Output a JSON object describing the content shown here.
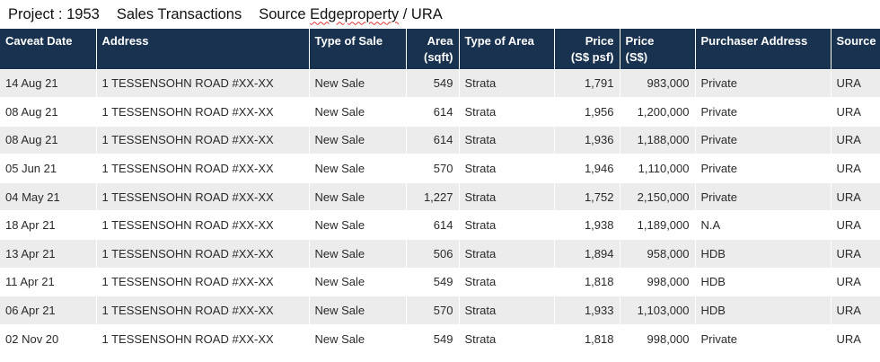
{
  "header": {
    "project": "Project : 1953",
    "sales": "Sales Transactions",
    "source_prefix": "Source ",
    "source_name": "Edgeproperty",
    "source_suffix": " / URA"
  },
  "columns": [
    {
      "key": "caveat_date",
      "label": "Caveat Date",
      "label2": "",
      "align": "left"
    },
    {
      "key": "address",
      "label": "Address",
      "label2": "",
      "align": "left"
    },
    {
      "key": "type_of_sale",
      "label": "Type of Sale",
      "label2": "",
      "align": "left"
    },
    {
      "key": "area",
      "label": "Area",
      "label2": "(sqft)",
      "align": "right"
    },
    {
      "key": "type_of_area",
      "label": "Type of Area",
      "label2": "",
      "align": "left"
    },
    {
      "key": "price_psf",
      "label": "Price",
      "label2": "(S$ psf)",
      "align": "right"
    },
    {
      "key": "price",
      "label": "Price",
      "label2": "(S$)",
      "align": "left"
    },
    {
      "key": "purchaser_address",
      "label": "Purchaser Address",
      "label2": "",
      "align": "left"
    },
    {
      "key": "source",
      "label": "Source",
      "label2": "",
      "align": "left"
    }
  ],
  "rows": [
    {
      "caveat_date": "14 Aug 21",
      "address": "1 TESSENSOHN ROAD #XX-XX",
      "type_of_sale": "New Sale",
      "area": "549",
      "type_of_area": "Strata",
      "price_psf": "1,791",
      "price": "983,000",
      "purchaser_address": "Private",
      "source": "URA"
    },
    {
      "caveat_date": "08 Aug 21",
      "address": "1 TESSENSOHN ROAD #XX-XX",
      "type_of_sale": "New Sale",
      "area": "614",
      "type_of_area": "Strata",
      "price_psf": "1,956",
      "price": "1,200,000",
      "purchaser_address": "Private",
      "source": "URA"
    },
    {
      "caveat_date": "08 Aug 21",
      "address": "1 TESSENSOHN ROAD #XX-XX",
      "type_of_sale": "New Sale",
      "area": "614",
      "type_of_area": "Strata",
      "price_psf": "1,936",
      "price": "1,188,000",
      "purchaser_address": "Private",
      "source": "URA"
    },
    {
      "caveat_date": "05 Jun 21",
      "address": "1 TESSENSOHN ROAD #XX-XX",
      "type_of_sale": "New Sale",
      "area": "570",
      "type_of_area": "Strata",
      "price_psf": "1,946",
      "price": "1,110,000",
      "purchaser_address": "Private",
      "source": "URA"
    },
    {
      "caveat_date": "04 May 21",
      "address": "1 TESSENSOHN ROAD #XX-XX",
      "type_of_sale": "New Sale",
      "area": "1,227",
      "type_of_area": "Strata",
      "price_psf": "1,752",
      "price": "2,150,000",
      "purchaser_address": "Private",
      "source": "URA"
    },
    {
      "caveat_date": "18 Apr 21",
      "address": "1 TESSENSOHN ROAD #XX-XX",
      "type_of_sale": "New Sale",
      "area": "614",
      "type_of_area": "Strata",
      "price_psf": "1,938",
      "price": "1,189,000",
      "purchaser_address": "N.A",
      "source": "URA"
    },
    {
      "caveat_date": "13 Apr 21",
      "address": "1 TESSENSOHN ROAD #XX-XX",
      "type_of_sale": "New Sale",
      "area": "506",
      "type_of_area": "Strata",
      "price_psf": "1,894",
      "price": "958,000",
      "purchaser_address": "HDB",
      "source": "URA"
    },
    {
      "caveat_date": "11 Apr 21",
      "address": "1 TESSENSOHN ROAD #XX-XX",
      "type_of_sale": "New Sale",
      "area": "549",
      "type_of_area": "Strata",
      "price_psf": "1,818",
      "price": "998,000",
      "purchaser_address": "HDB",
      "source": "URA"
    },
    {
      "caveat_date": "06 Apr 21",
      "address": "1 TESSENSOHN ROAD #XX-XX",
      "type_of_sale": "New Sale",
      "area": "570",
      "type_of_area": "Strata",
      "price_psf": "1,933",
      "price": "1,103,000",
      "purchaser_address": "HDB",
      "source": "URA"
    },
    {
      "caveat_date": "02 Nov 20",
      "address": "1 TESSENSOHN ROAD #XX-XX",
      "type_of_sale": "New Sale",
      "area": "549",
      "type_of_area": "Strata",
      "price_psf": "1,818",
      "price": "998,000",
      "purchaser_address": "Private",
      "source": "URA"
    }
  ]
}
